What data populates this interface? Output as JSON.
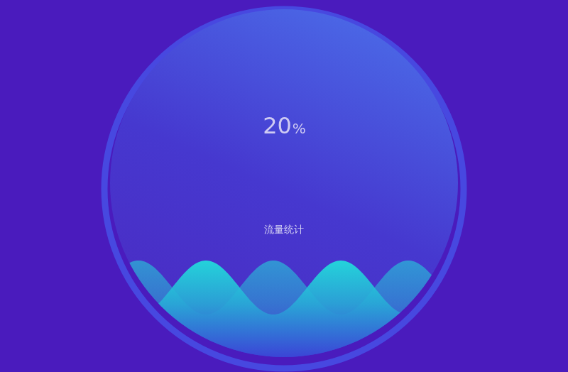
{
  "chart_data": {
    "type": "liquid_fill",
    "title": "流量统计",
    "values": [
      20
    ],
    "value_labels": [
      "20%"
    ],
    "ylim": [
      0,
      100
    ],
    "tick_labels": false,
    "grid": false
  }
}
